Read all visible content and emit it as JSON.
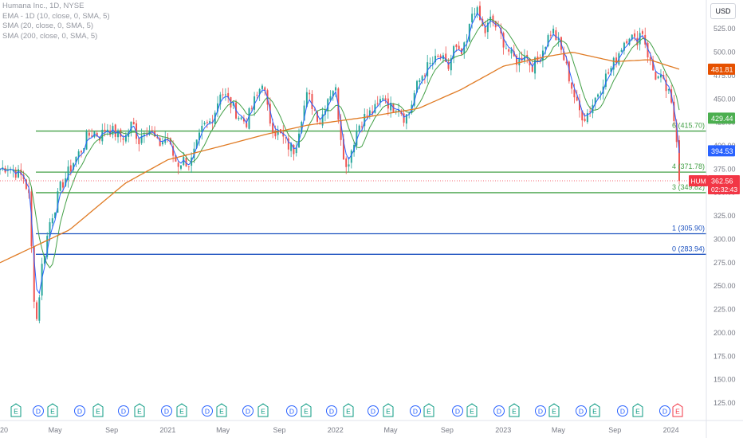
{
  "legend": {
    "symbol_line": "Humana Inc., 1D, NYSE",
    "ema_line": "EMA - 1D (10, close, 0, SMA, 5)",
    "sma20_line": "SMA (20, close, 0, SMA, 5)",
    "sma200_line": "SMA (200, close, 0, SMA, 5)"
  },
  "currency": "USD",
  "colors": {
    "up": "#26a69a",
    "down": "#ef5350",
    "ema10": "#2962ff",
    "sma20": "#43a047",
    "sma200": "#e07b24",
    "fib_green": "#43a047",
    "fib_blue": "#1e53c0",
    "price_tag": "#f23645",
    "sma200_tag": "#e65100",
    "ema_tag": "#2962ff",
    "sma20_tag": "#4caf50",
    "earnings": "#089981",
    "dividend": "#2962ff"
  },
  "price_tags": {
    "sma200": "481.81",
    "sma20": "429.44",
    "ema10": "394.53",
    "symbol": "HUM",
    "last": "362.56",
    "countdown": "02:32:43"
  },
  "event_markers": [
    "E",
    "D",
    "E",
    "D",
    "E",
    "D",
    "E",
    "D",
    "E",
    "D",
    "E",
    "D",
    "E",
    "D",
    "E",
    "D",
    "E",
    "D",
    "E",
    "D",
    "E",
    "D",
    "E",
    "D",
    "E",
    "D",
    "E",
    "D",
    "E",
    "D",
    "E",
    "D",
    "E"
  ],
  "chart_data": {
    "type": "candlestick",
    "title": "Humana Inc., 1D, NYSE",
    "x_ticks": [
      "20",
      "May",
      "Sep",
      "2021",
      "May",
      "Sep",
      "2022",
      "May",
      "Sep",
      "2023",
      "May",
      "Sep",
      "2024"
    ],
    "y_ticks": [
      125,
      150,
      175,
      200,
      225,
      250,
      275,
      300,
      325,
      350,
      375,
      400,
      425,
      450,
      475,
      500,
      525
    ],
    "y_tick_labels": [
      "125.00",
      "150.00",
      "175.00",
      "200.00",
      "225.00",
      "250.00",
      "275.00",
      "300.00",
      "325.00",
      "350.00",
      "375.00",
      "400.00",
      "425.00",
      "450.00",
      "475.00",
      "500.00",
      "525.00"
    ],
    "ylim": [
      110,
      545
    ],
    "date_range": [
      "2020-01-02",
      "2024-01-19"
    ],
    "price_path": [
      [
        "2020-01-02",
        375
      ],
      [
        "2020-01-20",
        378
      ],
      [
        "2020-02-10",
        370
      ],
      [
        "2020-02-24",
        365
      ],
      [
        "2020-03-05",
        345
      ],
      [
        "2020-03-12",
        275
      ],
      [
        "2020-03-16",
        240
      ],
      [
        "2020-03-23",
        210
      ],
      [
        "2020-03-31",
        265
      ],
      [
        "2020-04-09",
        290
      ],
      [
        "2020-04-20",
        320
      ],
      [
        "2020-05-01",
        335
      ],
      [
        "2020-05-12",
        355
      ],
      [
        "2020-05-28",
        370
      ],
      [
        "2020-06-12",
        385
      ],
      [
        "2020-06-26",
        395
      ],
      [
        "2020-07-10",
        410
      ],
      [
        "2020-07-24",
        415
      ],
      [
        "2020-08-07",
        410
      ],
      [
        "2020-08-21",
        420
      ],
      [
        "2020-09-04",
        415
      ],
      [
        "2020-09-18",
        410
      ],
      [
        "2020-10-02",
        410
      ],
      [
        "2020-10-16",
        425
      ],
      [
        "2020-10-30",
        405
      ],
      [
        "2020-11-13",
        420
      ],
      [
        "2020-11-27",
        415
      ],
      [
        "2020-12-11",
        400
      ],
      [
        "2020-12-31",
        410
      ],
      [
        "2021-01-08",
        395
      ],
      [
        "2021-01-22",
        380
      ],
      [
        "2021-02-05",
        385
      ],
      [
        "2021-02-19",
        380
      ],
      [
        "2021-03-05",
        400
      ],
      [
        "2021-03-19",
        420
      ],
      [
        "2021-04-02",
        425
      ],
      [
        "2021-04-16",
        440
      ],
      [
        "2021-04-26",
        460
      ],
      [
        "2021-05-10",
        450
      ],
      [
        "2021-05-24",
        440
      ],
      [
        "2021-06-07",
        430
      ],
      [
        "2021-06-21",
        425
      ],
      [
        "2021-07-06",
        445
      ],
      [
        "2021-07-16",
        455
      ],
      [
        "2021-07-26",
        470
      ],
      [
        "2021-08-09",
        430
      ],
      [
        "2021-08-23",
        415
      ],
      [
        "2021-09-06",
        410
      ],
      [
        "2021-09-20",
        400
      ],
      [
        "2021-10-04",
        395
      ],
      [
        "2021-10-18",
        430
      ],
      [
        "2021-11-01",
        455
      ],
      [
        "2021-11-15",
        440
      ],
      [
        "2021-11-29",
        425
      ],
      [
        "2021-12-13",
        450
      ],
      [
        "2021-12-31",
        465
      ],
      [
        "2022-01-10",
        420
      ],
      [
        "2022-01-24",
        375
      ],
      [
        "2022-02-04",
        395
      ],
      [
        "2022-02-18",
        420
      ],
      [
        "2022-03-04",
        430
      ],
      [
        "2022-03-18",
        435
      ],
      [
        "2022-04-01",
        440
      ],
      [
        "2022-04-15",
        455
      ],
      [
        "2022-05-02",
        440
      ],
      [
        "2022-05-16",
        445
      ],
      [
        "2022-05-31",
        430
      ],
      [
        "2022-06-10",
        435
      ],
      [
        "2022-06-24",
        460
      ],
      [
        "2022-07-08",
        475
      ],
      [
        "2022-07-22",
        485
      ],
      [
        "2022-08-05",
        490
      ],
      [
        "2022-08-19",
        495
      ],
      [
        "2022-09-02",
        480
      ],
      [
        "2022-09-16",
        505
      ],
      [
        "2022-09-30",
        495
      ],
      [
        "2022-10-14",
        510
      ],
      [
        "2022-10-28",
        550
      ],
      [
        "2022-11-07",
        540
      ],
      [
        "2022-11-21",
        520
      ],
      [
        "2022-12-05",
        535
      ],
      [
        "2022-12-19",
        525
      ],
      [
        "2023-01-03",
        510
      ],
      [
        "2023-01-20",
        495
      ],
      [
        "2023-02-03",
        490
      ],
      [
        "2023-02-17",
        500
      ],
      [
        "2023-03-03",
        485
      ],
      [
        "2023-03-17",
        490
      ],
      [
        "2023-04-03",
        510
      ],
      [
        "2023-04-17",
        525
      ],
      [
        "2023-05-01",
        510
      ],
      [
        "2023-05-15",
        490
      ],
      [
        "2023-05-29",
        465
      ],
      [
        "2023-06-12",
        440
      ],
      [
        "2023-06-26",
        430
      ],
      [
        "2023-07-10",
        440
      ],
      [
        "2023-07-24",
        455
      ],
      [
        "2023-08-07",
        470
      ],
      [
        "2023-08-21",
        480
      ],
      [
        "2023-09-05",
        495
      ],
      [
        "2023-09-19",
        510
      ],
      [
        "2023-10-02",
        520
      ],
      [
        "2023-10-16",
        510
      ],
      [
        "2023-10-30",
        525
      ],
      [
        "2023-11-13",
        495
      ],
      [
        "2023-11-27",
        475
      ],
      [
        "2023-12-11",
        470
      ],
      [
        "2023-12-27",
        455
      ],
      [
        "2024-01-05",
        435
      ],
      [
        "2024-01-12",
        415
      ],
      [
        "2024-01-17",
        395
      ],
      [
        "2024-01-18",
        360
      ],
      [
        "2024-01-19",
        362.56
      ]
    ],
    "sma200_path": [
      [
        "2020-01-02",
        275
      ],
      [
        "2020-06-01",
        310
      ],
      [
        "2020-10-01",
        360
      ],
      [
        "2021-01-01",
        385
      ],
      [
        "2021-05-01",
        400
      ],
      [
        "2021-08-01",
        412
      ],
      [
        "2021-11-01",
        422
      ],
      [
        "2022-03-01",
        430
      ],
      [
        "2022-07-01",
        440
      ],
      [
        "2022-10-01",
        460
      ],
      [
        "2023-01-01",
        485
      ],
      [
        "2023-04-01",
        495
      ],
      [
        "2023-06-01",
        500
      ],
      [
        "2023-09-01",
        490
      ],
      [
        "2023-11-15",
        492
      ],
      [
        "2024-01-19",
        481.81
      ]
    ],
    "fibonacci_levels": [
      {
        "label": "6 (415.70)",
        "value": 415.7,
        "color_key": "fib_green"
      },
      {
        "label": "4 (371.78)",
        "value": 371.78,
        "color_key": "fib_green"
      },
      {
        "label": "3 (349.82)",
        "value": 349.82,
        "color_key": "fib_green"
      },
      {
        "label": "1 (305.90)",
        "value": 305.9,
        "color_key": "fib_blue"
      },
      {
        "label": "0 (283.94)",
        "value": 283.94,
        "color_key": "fib_blue"
      }
    ],
    "series": [
      {
        "name": "EMA - 1D (10, close, 0, SMA, 5)",
        "last": 394.53
      },
      {
        "name": "SMA (20, close, 0, SMA, 5)",
        "last": 429.44
      },
      {
        "name": "SMA (200, close, 0, SMA, 5)",
        "last": 481.81
      }
    ],
    "last_price": 362.56,
    "grid": false
  }
}
